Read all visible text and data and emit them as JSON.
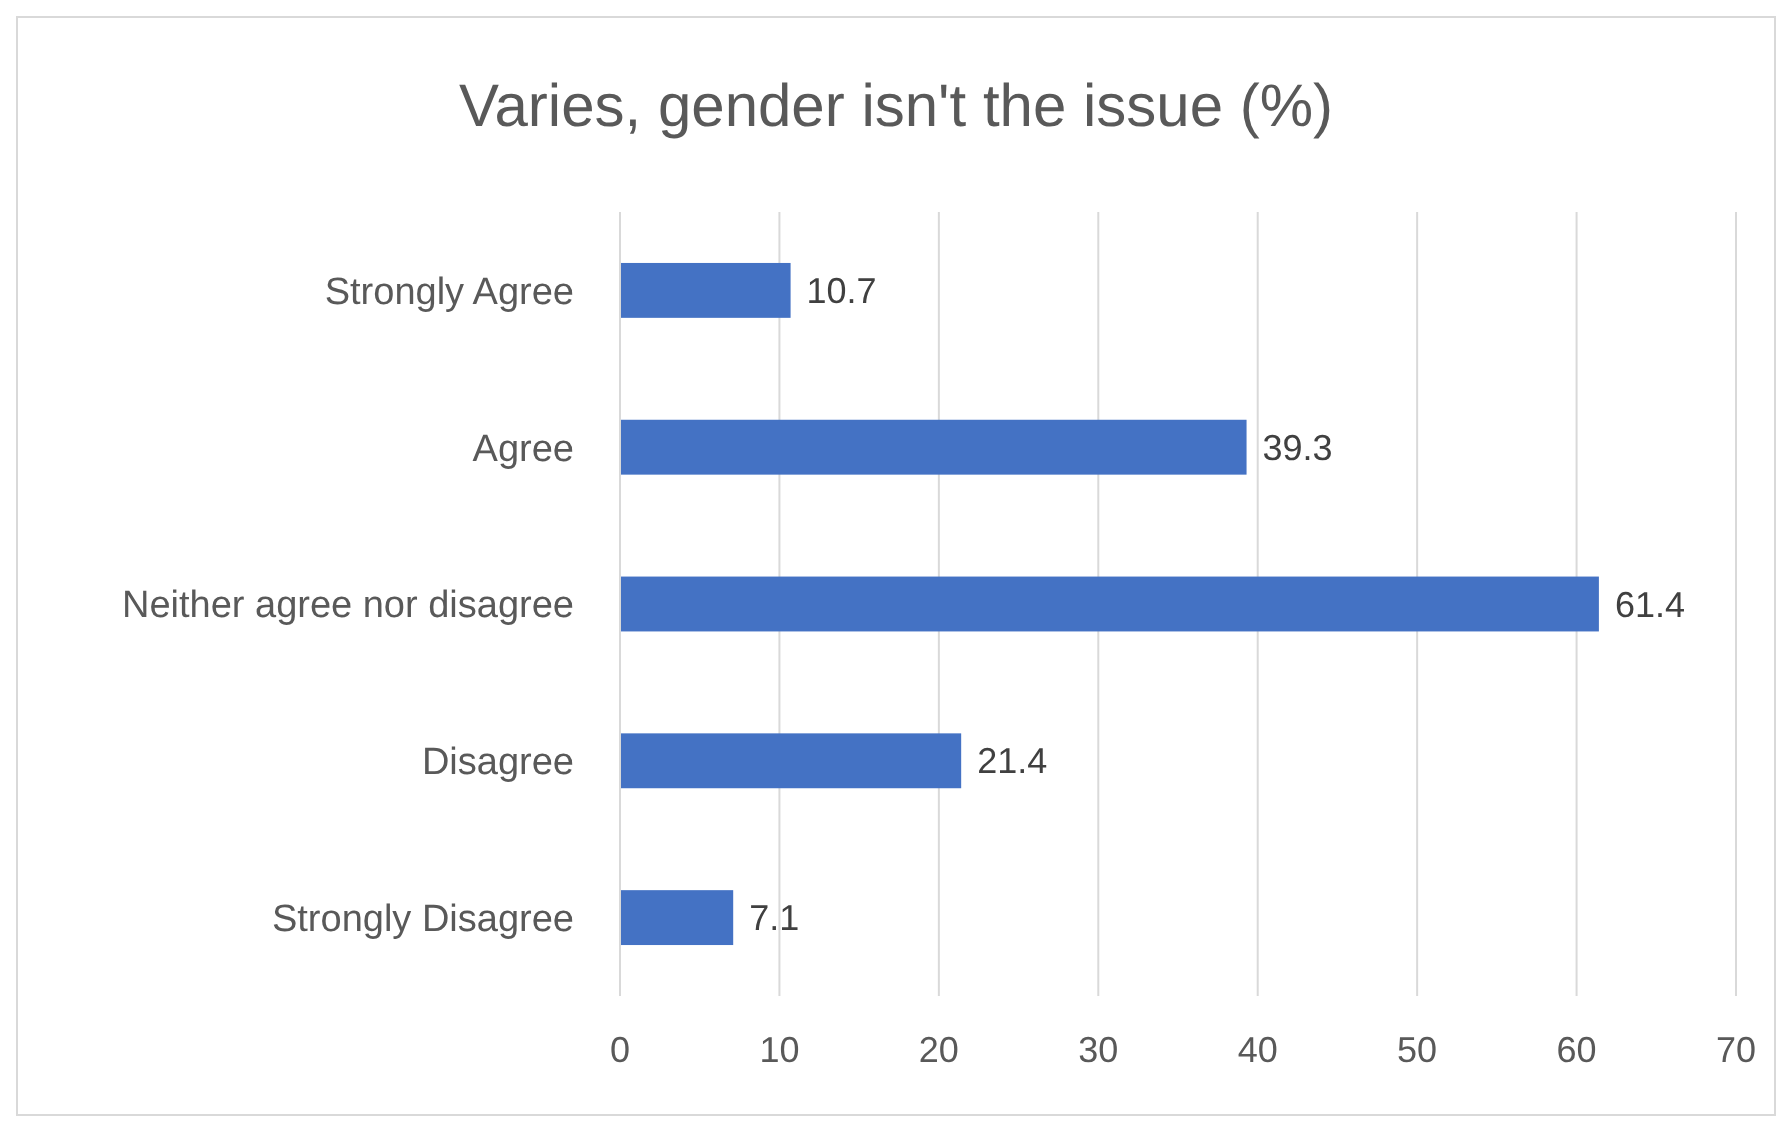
{
  "chart_data": {
    "type": "bar",
    "orientation": "horizontal",
    "title": "Varies, gender isn't the issue (%)",
    "categories": [
      "Strongly Agree",
      "Agree",
      "Neither agree nor disagree",
      "Disagree",
      "Strongly Disagree"
    ],
    "values": [
      10.7,
      39.3,
      61.4,
      21.4,
      7.1
    ],
    "color": "#4472c4",
    "xlim": [
      0,
      70
    ],
    "xticks": [
      0,
      10,
      20,
      30,
      40,
      50,
      60,
      70
    ],
    "grid": "x",
    "data_labels": true
  }
}
